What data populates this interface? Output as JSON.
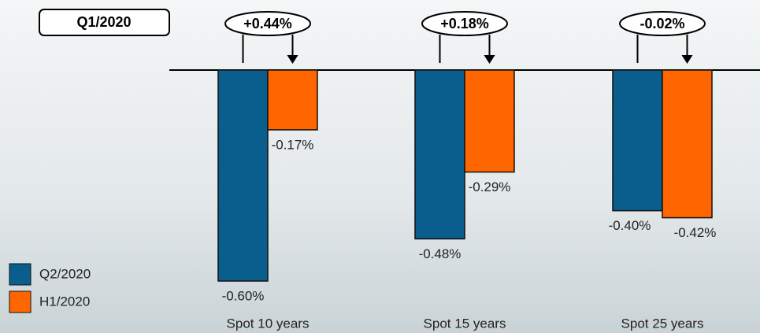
{
  "chart_data": {
    "type": "bar",
    "badge": "Q1/2020",
    "categories": [
      "Spot 10 years",
      "Spot 15 years",
      "Spot 25 years"
    ],
    "series": [
      {
        "name": "Q2/2020",
        "color": "#0a5e8e",
        "values": [
          -0.6,
          -0.48,
          -0.4
        ],
        "value_labels": [
          "-0.60%",
          "-0.48%",
          "-0.40%"
        ]
      },
      {
        "name": "H1/2020",
        "color": "#ff6600",
        "values": [
          -0.17,
          -0.29,
          -0.42
        ],
        "value_labels": [
          "-0.17%",
          "-0.29%",
          "-0.42%"
        ]
      }
    ],
    "annotations": [
      "+0.44%",
      "+0.18%",
      "-0.02%"
    ],
    "ylim": [
      -0.6,
      0
    ]
  }
}
